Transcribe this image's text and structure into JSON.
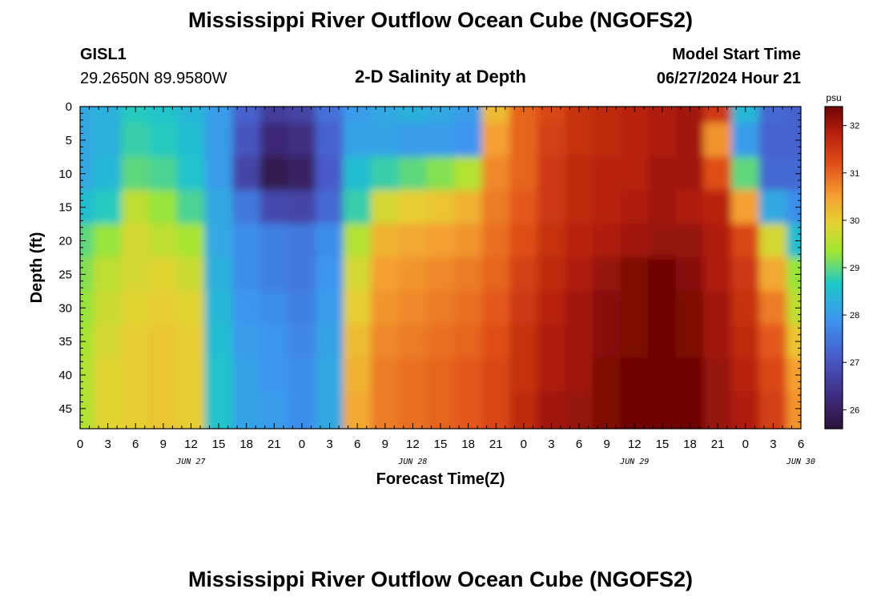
{
  "header": {
    "title": "Mississippi River Outflow Ocean Cube (NGOFS2)",
    "station": "GISL1",
    "coords": "29.2650N  89.9580W",
    "subtitle": "2-D Salinity at Depth",
    "model_start_label": "Model Start Time",
    "model_start_value": "06/27/2024 Hour 21"
  },
  "footer": {
    "title": "Mississippi River Outflow Ocean Cube (NGOFS2)"
  },
  "chart_data": {
    "type": "heatmap",
    "xlabel": "Forecast Time(Z)",
    "ylabel": "Depth (ft)",
    "x_tick_labels": [
      "0",
      "3",
      "6",
      "9",
      "12",
      "15",
      "18",
      "21",
      "0",
      "3",
      "6",
      "9",
      "12",
      "15",
      "18",
      "21",
      "0",
      "3",
      "6",
      "9",
      "12",
      "15",
      "18",
      "21",
      "0",
      "3",
      "6"
    ],
    "x_date_labels": [
      {
        "label": "JUN 27",
        "hour": 12
      },
      {
        "label": "JUN 28",
        "hour": 36
      },
      {
        "label": "JUN 29",
        "hour": 60
      },
      {
        "label": "JUN 30",
        "hour": 78
      }
    ],
    "x_range_hours": [
      0,
      78
    ],
    "y_ticks": [
      0,
      5,
      10,
      15,
      20,
      25,
      30,
      35,
      40,
      45
    ],
    "ylim": [
      0,
      48
    ],
    "y_inverted": true,
    "colorbar": {
      "unit": "psu",
      "ticks": [
        26,
        27,
        28,
        29,
        30,
        31,
        32
      ],
      "range": [
        25.6,
        32.4
      ]
    },
    "depths_ft": [
      0,
      5,
      10,
      15,
      20,
      25,
      30,
      35,
      40,
      45,
      48
    ],
    "time_hours": [
      0,
      3,
      6,
      9,
      12,
      15,
      18,
      21,
      24,
      27,
      30,
      33,
      36,
      39,
      42,
      45,
      48,
      51,
      54,
      57,
      60,
      63,
      66,
      69,
      72,
      75,
      78
    ],
    "salinity_psu": [
      [
        28.2,
        28.3,
        28.7,
        28.6,
        28.4,
        28.0,
        27.2,
        26.6,
        26.7,
        27.4,
        28.0,
        28.2,
        28.3,
        28.2,
        28.0,
        30.2,
        31.0,
        31.3,
        31.6,
        31.7,
        31.8,
        31.9,
        32.0,
        31.5,
        28.4,
        27.3,
        27.2
      ],
      [
        28.2,
        28.3,
        28.8,
        28.7,
        28.5,
        28.0,
        27.0,
        26.2,
        26.3,
        27.2,
        28.1,
        28.1,
        28.0,
        28.0,
        27.9,
        30.5,
        31.0,
        31.4,
        31.6,
        31.7,
        31.8,
        31.9,
        32.0,
        30.6,
        28.0,
        27.2,
        27.2
      ],
      [
        28.2,
        28.4,
        29.0,
        28.9,
        28.6,
        28.0,
        26.7,
        25.8,
        26.0,
        27.1,
        28.5,
        28.8,
        29.0,
        29.2,
        29.5,
        30.7,
        31.0,
        31.5,
        31.7,
        31.8,
        31.8,
        32.0,
        32.0,
        31.2,
        29.0,
        27.3,
        27.3
      ],
      [
        28.5,
        28.7,
        29.6,
        29.3,
        28.9,
        28.2,
        27.5,
        26.8,
        26.7,
        27.3,
        28.8,
        29.8,
        30.0,
        30.1,
        30.3,
        30.8,
        31.1,
        31.5,
        31.7,
        31.8,
        31.9,
        32.0,
        31.9,
        31.8,
        30.5,
        28.2,
        27.8
      ],
      [
        29.0,
        29.3,
        29.8,
        29.6,
        29.4,
        28.2,
        27.8,
        27.6,
        27.5,
        27.8,
        29.5,
        30.3,
        30.4,
        30.5,
        30.6,
        30.9,
        31.2,
        31.6,
        31.8,
        31.9,
        32.0,
        32.1,
        32.1,
        31.9,
        31.3,
        29.8,
        28.5
      ],
      [
        29.2,
        29.6,
        29.8,
        29.9,
        29.7,
        28.3,
        27.8,
        27.6,
        27.5,
        27.9,
        29.8,
        30.5,
        30.6,
        30.7,
        30.8,
        31.0,
        31.4,
        31.7,
        31.9,
        32.1,
        32.3,
        32.4,
        32.2,
        31.9,
        31.5,
        30.4,
        29.3
      ],
      [
        29.3,
        29.7,
        29.9,
        30.0,
        29.9,
        28.4,
        27.9,
        27.8,
        27.6,
        28.0,
        30.0,
        30.6,
        30.7,
        30.8,
        30.9,
        31.1,
        31.5,
        31.8,
        32.0,
        32.2,
        32.3,
        32.4,
        32.3,
        32.0,
        31.6,
        30.8,
        29.6
      ],
      [
        29.4,
        29.8,
        30.0,
        30.1,
        30.0,
        28.5,
        28.0,
        27.9,
        27.7,
        28.1,
        30.2,
        30.7,
        30.8,
        30.9,
        31.0,
        31.2,
        31.6,
        31.9,
        32.0,
        32.2,
        32.3,
        32.4,
        32.3,
        32.0,
        31.7,
        31.1,
        30.1
      ],
      [
        29.5,
        29.9,
        30.0,
        30.1,
        30.0,
        28.6,
        28.1,
        27.9,
        27.8,
        28.2,
        30.3,
        30.8,
        30.9,
        31.0,
        31.1,
        31.3,
        31.6,
        31.9,
        32.0,
        32.3,
        32.4,
        32.5,
        32.4,
        32.1,
        31.8,
        31.3,
        30.5
      ],
      [
        29.5,
        29.9,
        30.0,
        30.1,
        30.0,
        28.6,
        28.1,
        28.0,
        27.8,
        28.2,
        30.4,
        30.8,
        30.9,
        31.0,
        31.1,
        31.3,
        31.7,
        32.0,
        32.1,
        32.3,
        32.4,
        32.5,
        32.4,
        32.1,
        31.9,
        31.4,
        30.6
      ],
      [
        29.5,
        29.9,
        30.0,
        30.1,
        30.0,
        28.6,
        28.1,
        28.0,
        27.8,
        28.2,
        30.4,
        30.8,
        30.9,
        31.0,
        31.1,
        31.3,
        31.7,
        32.0,
        32.1,
        32.3,
        32.4,
        32.5,
        32.4,
        32.1,
        31.9,
        31.4,
        30.6
      ]
    ]
  }
}
